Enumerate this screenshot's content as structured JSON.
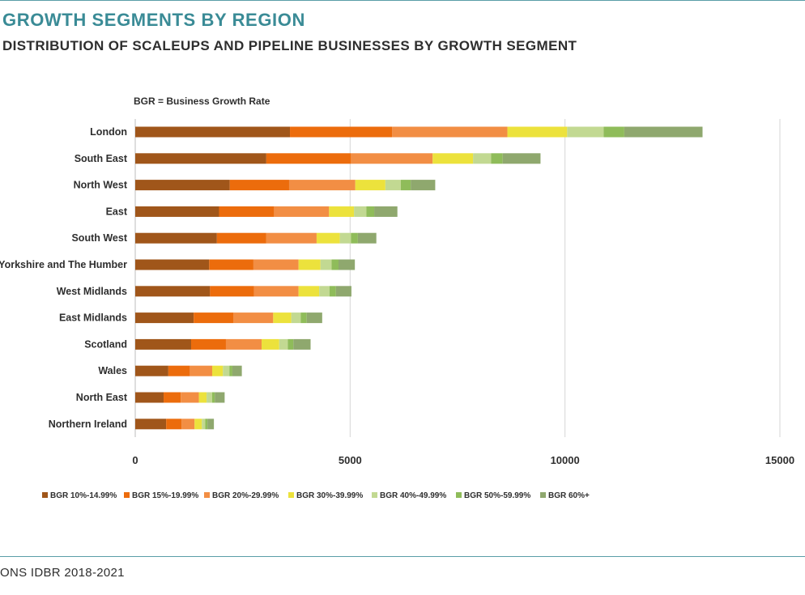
{
  "header": {
    "title": "GROWTH SEGMENTS BY REGION",
    "subtitle": "DISTRIBUTION OF SCALEUPS AND PIPELINE BUSINESSES BY GROWTH SEGMENT"
  },
  "note": "BGR = Business Growth Rate",
  "footer": {
    "source": "ONS IDBR 2018-2021"
  },
  "chart_data": {
    "type": "bar",
    "orientation": "horizontal",
    "stacked": true,
    "title": "",
    "xlabel": "",
    "ylabel": "",
    "xlim": [
      0,
      15000
    ],
    "xticks": [
      0,
      5000,
      10000,
      15000
    ],
    "grid": true,
    "legend_position": "bottom",
    "categories": [
      "London",
      "South East",
      "North West",
      "East",
      "South West",
      "Yorkshire and The Humber",
      "West Midlands",
      "East Midlands",
      "Scotland",
      "Wales",
      "North East",
      "Northern Ireland"
    ],
    "series": [
      {
        "name": "BGR 10%-14.99%",
        "color": "#a0561a",
        "values": [
          3600,
          3050,
          2200,
          1950,
          1900,
          1720,
          1740,
          1360,
          1300,
          770,
          660,
          720
        ]
      },
      {
        "name": "BGR 15%-19.99%",
        "color": "#ec6c0c",
        "values": [
          2380,
          1970,
          1380,
          1280,
          1150,
          1030,
          1020,
          920,
          810,
          500,
          400,
          360
        ]
      },
      {
        "name": "BGR 20%-29.99%",
        "color": "#f28e44",
        "values": [
          2680,
          1900,
          1540,
          1280,
          1170,
          1050,
          1040,
          930,
          830,
          520,
          420,
          300
        ]
      },
      {
        "name": "BGR 30%-39.99%",
        "color": "#ece23c",
        "values": [
          1390,
          940,
          700,
          580,
          540,
          510,
          480,
          420,
          410,
          250,
          180,
          170
        ]
      },
      {
        "name": "BGR 40%-49.99%",
        "color": "#c2d992",
        "values": [
          850,
          420,
          360,
          290,
          260,
          260,
          240,
          220,
          200,
          150,
          130,
          80
        ]
      },
      {
        "name": "BGR 50%-59.99%",
        "color": "#8fbc5a",
        "values": [
          480,
          270,
          230,
          180,
          160,
          160,
          150,
          140,
          130,
          70,
          60,
          50
        ]
      },
      {
        "name": "BGR 60%+",
        "color": "#8fa86e",
        "values": [
          1820,
          880,
          570,
          540,
          430,
          380,
          360,
          360,
          400,
          220,
          230,
          150
        ]
      }
    ]
  }
}
